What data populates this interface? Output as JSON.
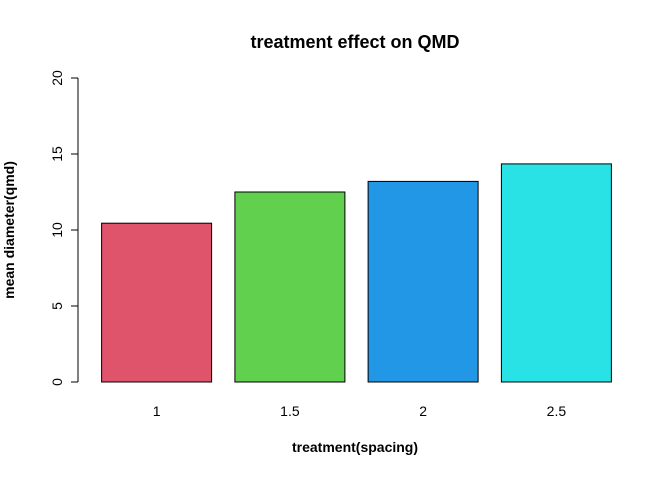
{
  "chart_data": {
    "type": "bar",
    "title": "treatment effect on QMD",
    "xlabel": "treatment(spacing)",
    "ylabel": "mean diameter(qmd)",
    "categories": [
      "1",
      "1.5",
      "2",
      "2.5"
    ],
    "values": [
      10.45,
      12.5,
      13.2,
      14.35
    ],
    "colors": [
      "#df536b",
      "#61d04f",
      "#2297e6",
      "#28e2e5"
    ],
    "ylim": [
      0,
      20
    ],
    "yticks": [
      0,
      5,
      10,
      15,
      20
    ],
    "grid": false,
    "legend": "none"
  }
}
